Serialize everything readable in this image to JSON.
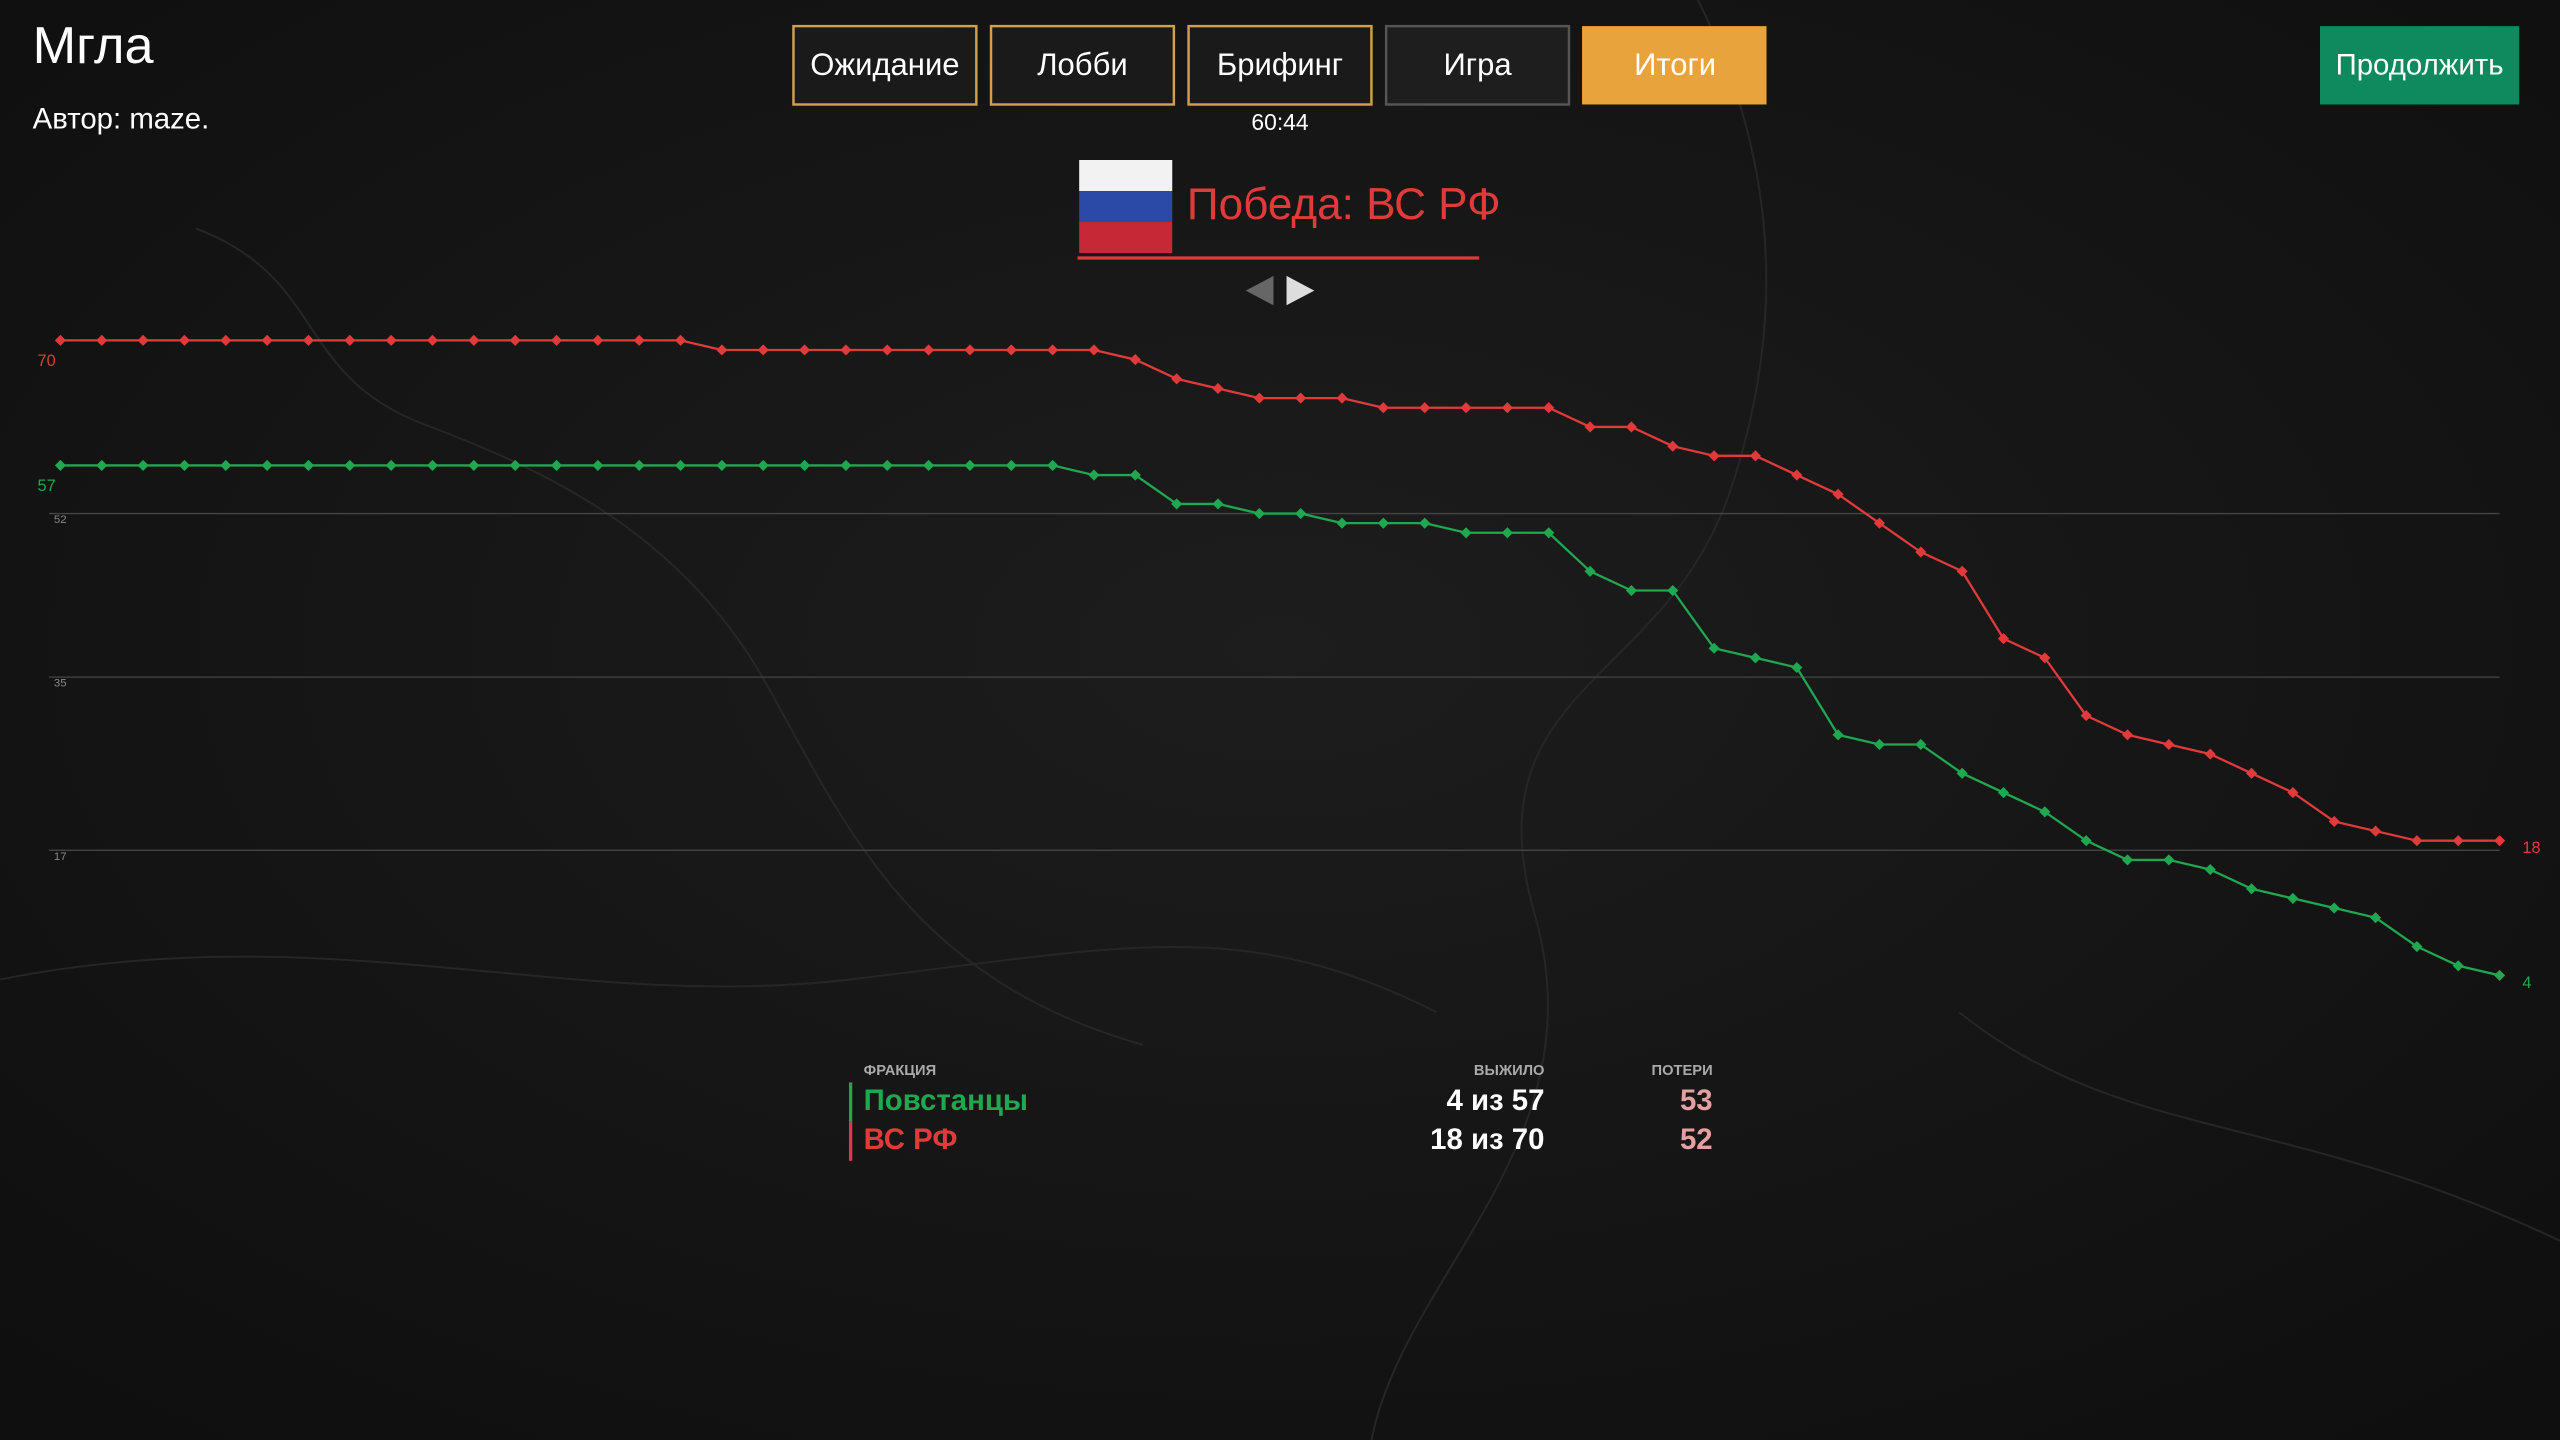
{
  "header": {
    "title": "Мгла",
    "author": "Автор: maze."
  },
  "tabs": [
    "Ожидание",
    "Лобби",
    "Брифинг",
    "Игра",
    "Итоги"
  ],
  "timer": "60:44",
  "victory": "Победа: ВС РФ",
  "continue_button": "Продолжить",
  "chart_data": {
    "type": "line",
    "ylim": [
      0,
      75
    ],
    "yticks": [
      17,
      35,
      52
    ],
    "grid": true,
    "series": [
      {
        "name": "Повстанцы",
        "color": "#1fa84f",
        "values": [
          57,
          57,
          57,
          57,
          57,
          57,
          57,
          57,
          57,
          57,
          57,
          57,
          57,
          57,
          57,
          57,
          57,
          57,
          57,
          57,
          57,
          57,
          57,
          57,
          57,
          56,
          56,
          53,
          53,
          52,
          52,
          51,
          51,
          51,
          50,
          50,
          50,
          46,
          44,
          44,
          38,
          37,
          36,
          29,
          28,
          28,
          25,
          23,
          21,
          18,
          16,
          16,
          15,
          13,
          12,
          11,
          10,
          7,
          5,
          4
        ]
      },
      {
        "name": "ВС РФ",
        "color": "#e23a3a",
        "values": [
          70,
          70,
          70,
          70,
          70,
          70,
          70,
          70,
          70,
          70,
          70,
          70,
          70,
          70,
          70,
          70,
          69,
          69,
          69,
          69,
          69,
          69,
          69,
          69,
          69,
          69,
          68,
          66,
          65,
          64,
          64,
          64,
          63,
          63,
          63,
          63,
          63,
          61,
          61,
          59,
          58,
          58,
          56,
          54,
          51,
          48,
          46,
          39,
          37,
          31,
          29,
          28,
          27,
          25,
          23,
          20,
          19,
          18,
          18,
          18
        ]
      }
    ]
  },
  "table": {
    "headers": [
      "ФРАКЦИЯ",
      "ВЫЖИЛО",
      "ПОТЕРИ"
    ],
    "rows": [
      [
        "4 из 57",
        "53"
      ],
      [
        "18 из 70",
        "52"
      ]
    ]
  }
}
